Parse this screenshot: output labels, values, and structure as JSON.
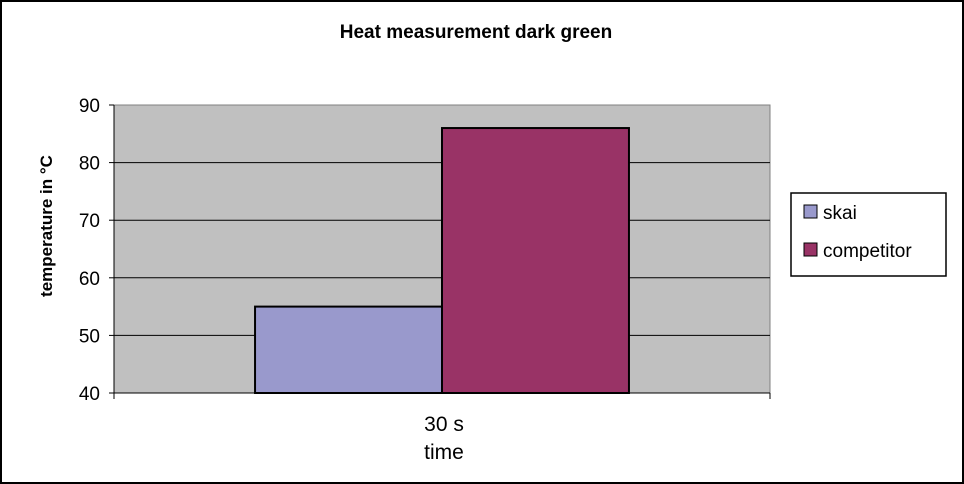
{
  "chart_data": {
    "type": "bar",
    "title": "Heat measurement  dark green",
    "xlabel": "time",
    "ylabel": "temperature in °C",
    "categories": [
      "30 s"
    ],
    "series": [
      {
        "name": "skai",
        "values": [
          55
        ],
        "color": "#9999cc"
      },
      {
        "name": "competitor",
        "values": [
          86
        ],
        "color": "#993366"
      }
    ],
    "ylim": [
      40,
      90
    ],
    "yticks": [
      40,
      50,
      60,
      70,
      80,
      90
    ],
    "grid": true,
    "plot_background": "#c0c0c0",
    "legend_position": "right"
  }
}
